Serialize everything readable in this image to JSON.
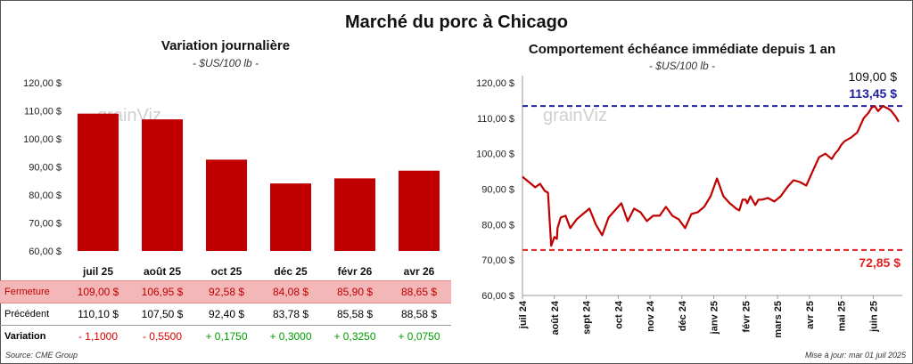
{
  "title": "Marché du porc à Chicago",
  "chart_data": [
    {
      "type": "bar",
      "title": "Variation journalière",
      "subtitle": "- $US/100 lb -",
      "watermark": "grainViz",
      "categories": [
        "juil 25",
        "août 25",
        "oct 25",
        "déc 25",
        "févr 26",
        "avr 26"
      ],
      "values": [
        109.0,
        106.95,
        92.58,
        84.08,
        85.9,
        88.65
      ],
      "ylim": [
        60,
        120
      ],
      "yticks": [
        "60,00 $",
        "70,00 $",
        "80,00 $",
        "90,00 $",
        "100,00 $",
        "110,00 $",
        "120,00 $"
      ],
      "bar_color": "#c00000",
      "grid": false
    },
    {
      "type": "line",
      "title": "Comportement échéance immédiate depuis 1 an",
      "subtitle": "- $US/100 lb -",
      "watermark": "grainViz",
      "ylim": [
        60,
        120
      ],
      "yticks": [
        "60,00 $",
        "70,00 $",
        "80,00 $",
        "90,00 $",
        "100,00 $",
        "110,00 $",
        "120,00 $"
      ],
      "xticks": [
        "juil 24",
        "août 24",
        "sept 24",
        "oct 24",
        "nov 24",
        "déc 24",
        "janv 25",
        "févr 25",
        "mars 25",
        "avr 25",
        "mai 25",
        "juin 25"
      ],
      "line_color": "#c00000",
      "last_value": 109.0,
      "last_label": "109,00 $",
      "high": 113.45,
      "high_label": "113,45 $",
      "high_color": "#1f1fa0",
      "low": 72.85,
      "low_label": "72,85 $",
      "low_color": "#e02020",
      "series": [
        {
          "x": [
            0,
            0.2,
            0.4,
            0.55,
            0.7,
            0.8,
            0.9,
            1.0,
            1.08,
            1.1,
            1.2,
            1.35,
            1.5,
            1.7,
            1.9,
            2.1,
            2.3,
            2.5,
            2.7,
            2.9,
            3.1,
            3.3,
            3.5,
            3.7,
            3.9,
            4.1,
            4.3,
            4.5,
            4.7,
            4.9,
            5.1,
            5.3,
            5.5,
            5.7,
            5.9,
            6.1,
            6.3,
            6.5,
            6.7,
            6.8,
            6.9,
            7.0,
            7.05,
            7.15,
            7.3,
            7.4,
            7.5,
            7.7,
            7.9,
            8.1,
            8.3,
            8.5,
            8.7,
            8.9,
            9.1,
            9.3,
            9.5,
            9.7,
            9.8,
            9.9,
            10.0,
            10.1,
            10.3,
            10.5,
            10.7,
            10.85,
            10.95,
            11.05,
            11.15,
            11.3,
            11.45,
            11.55,
            11.7,
            11.8
          ],
          "y": [
            93.5,
            92.0,
            90.5,
            91.5,
            89.5,
            89.0,
            74.0,
            76.5,
            76.0,
            79.0,
            82.0,
            82.5,
            79.0,
            81.5,
            83.0,
            84.5,
            80.0,
            77.0,
            82.0,
            84.0,
            86.0,
            81.0,
            84.5,
            83.5,
            81.0,
            82.5,
            82.5,
            85.0,
            82.5,
            81.5,
            79.0,
            83.0,
            83.5,
            85.0,
            88.0,
            93.0,
            88.0,
            86.0,
            84.5,
            84.0,
            87.0,
            87.0,
            86.0,
            88.0,
            85.5,
            87.0,
            87.0,
            87.5,
            86.5,
            88.0,
            90.5,
            92.5,
            92.0,
            91.0,
            95.0,
            99.0,
            100.0,
            98.5,
            100.0,
            101.0,
            102.5,
            103.5,
            104.5,
            106.0,
            110.0,
            111.5,
            113.0,
            113.4,
            112.0,
            113.45,
            112.8,
            112.2,
            110.5,
            109.0
          ]
        }
      ]
    }
  ],
  "table": {
    "rows": [
      {
        "label": "Fermeture",
        "values": [
          "109,00  $",
          "106,95  $",
          "92,58  $",
          "84,08  $",
          "85,90  $",
          "88,65  $"
        ]
      },
      {
        "label": "Précédent",
        "values": [
          "110,10  $",
          "107,50  $",
          "92,40  $",
          "83,78  $",
          "85,58  $",
          "88,58  $"
        ]
      },
      {
        "label": "Variation",
        "values": [
          "- 1,1000",
          "- 0,5500",
          "+ 0,1750",
          "+ 0,3000",
          "+ 0,3250",
          "+ 0,0750"
        ]
      }
    ],
    "fermeture_bg": "#f4b7b7",
    "fermeture_color": "#c00000",
    "negative_color": "#e00000",
    "positive_color": "#00a000"
  },
  "footer": {
    "source": "Source: CME Group",
    "updated": "Mise à jour: mar 01 juil 2025"
  }
}
